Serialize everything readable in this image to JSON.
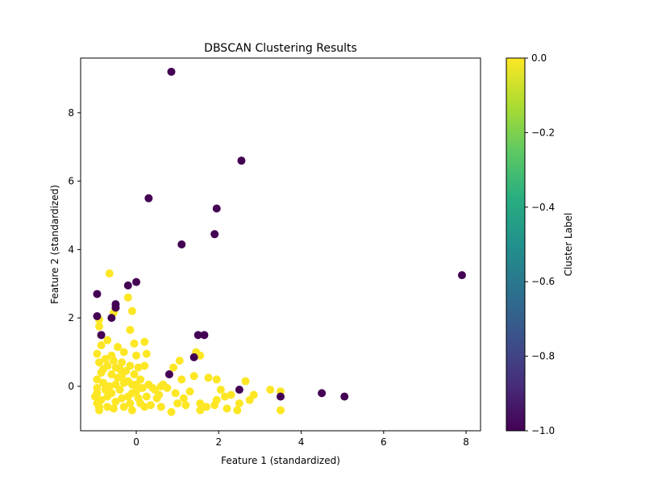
{
  "chart_data": {
    "type": "scatter",
    "title": "DBSCAN Clustering Results",
    "xlabel": "Feature 1 (standardized)",
    "ylabel": "Feature 2 (standardized)",
    "xlim": [
      -1.35,
      8.35
    ],
    "ylim": [
      -1.3,
      9.6
    ],
    "xticks": [
      0,
      2,
      4,
      6,
      8
    ],
    "yticks": [
      0,
      2,
      4,
      6,
      8
    ],
    "grid": false,
    "colorbar": {
      "label": "Cluster Label",
      "range": [
        -1.0,
        0.0
      ],
      "ticks": [
        "0.0",
        "−0.2",
        "−0.4",
        "−0.6",
        "−0.8",
        "−1.0"
      ],
      "tick_values": [
        0.0,
        -0.2,
        -0.4,
        -0.6,
        -0.8,
        -1.0
      ],
      "colormap": "viridis"
    },
    "colors": {
      "noise": "#440154",
      "cluster": "#fde725"
    },
    "series": [
      {
        "label_value": -1,
        "points": [
          [
            0.85,
            9.2
          ],
          [
            2.55,
            6.6
          ],
          [
            0.3,
            5.5
          ],
          [
            1.95,
            5.2
          ],
          [
            1.9,
            4.45
          ],
          [
            1.1,
            4.15
          ],
          [
            7.9,
            3.25
          ],
          [
            -0.2,
            2.95
          ],
          [
            0.0,
            3.05
          ],
          [
            -0.95,
            2.7
          ],
          [
            -0.5,
            2.4
          ],
          [
            -0.5,
            2.3
          ],
          [
            -0.6,
            2.0
          ],
          [
            -0.95,
            2.05
          ],
          [
            -0.85,
            1.5
          ],
          [
            1.5,
            1.5
          ],
          [
            1.65,
            1.5
          ],
          [
            1.4,
            0.85
          ],
          [
            0.8,
            0.35
          ],
          [
            2.5,
            -0.1
          ],
          [
            3.5,
            -0.3
          ],
          [
            4.5,
            -0.2
          ],
          [
            5.05,
            -0.3
          ]
        ]
      },
      {
        "label_value": 0,
        "points": [
          [
            -0.65,
            3.3
          ],
          [
            -0.2,
            2.6
          ],
          [
            -0.55,
            2.15
          ],
          [
            -0.1,
            2.2
          ],
          [
            -0.9,
            1.95
          ],
          [
            -0.9,
            1.75
          ],
          [
            -0.15,
            1.65
          ],
          [
            -0.7,
            1.35
          ],
          [
            0.2,
            1.3
          ],
          [
            -0.05,
            1.25
          ],
          [
            -0.85,
            1.2
          ],
          [
            -0.45,
            1.15
          ],
          [
            -0.3,
            1.0
          ],
          [
            0.25,
            0.95
          ],
          [
            1.45,
            1.0
          ],
          [
            1.55,
            0.9
          ],
          [
            1.05,
            0.75
          ],
          [
            -0.95,
            0.95
          ],
          [
            -0.6,
            0.9
          ],
          [
            0.0,
            0.9
          ],
          [
            0.9,
            0.55
          ],
          [
            0.2,
            0.6
          ],
          [
            1.75,
            0.25
          ],
          [
            1.95,
            0.2
          ],
          [
            2.65,
            0.15
          ],
          [
            1.1,
            0.2
          ],
          [
            1.4,
            0.3
          ],
          [
            3.25,
            -0.1
          ],
          [
            3.5,
            -0.15
          ],
          [
            2.85,
            -0.25
          ],
          [
            2.15,
            -0.3
          ],
          [
            2.3,
            -0.25
          ],
          [
            1.95,
            -0.4
          ],
          [
            2.75,
            -0.4
          ],
          [
            2.5,
            -0.5
          ],
          [
            2.2,
            -0.65
          ],
          [
            2.45,
            -0.7
          ],
          [
            1.9,
            -0.55
          ],
          [
            3.5,
            -0.7
          ],
          [
            1.55,
            -0.5
          ],
          [
            1.55,
            -0.7
          ],
          [
            1.2,
            -0.55
          ],
          [
            1.0,
            -0.5
          ],
          [
            0.85,
            -0.75
          ],
          [
            0.6,
            -0.6
          ],
          [
            0.5,
            -0.35
          ],
          [
            0.45,
            -0.1
          ],
          [
            0.65,
            0.05
          ],
          [
            0.3,
            0.05
          ],
          [
            0.1,
            0.2
          ],
          [
            -0.1,
            0.05
          ],
          [
            -0.35,
            0.3
          ],
          [
            -0.5,
            0.55
          ],
          [
            -0.7,
            0.6
          ],
          [
            -0.85,
            0.4
          ],
          [
            -0.95,
            0.2
          ],
          [
            -0.95,
            -0.05
          ],
          [
            -1.0,
            -0.3
          ],
          [
            -0.95,
            -0.5
          ],
          [
            -0.9,
            -0.7
          ],
          [
            -0.7,
            -0.6
          ],
          [
            -0.5,
            -0.45
          ],
          [
            -0.3,
            -0.6
          ],
          [
            -0.1,
            -0.7
          ],
          [
            0.1,
            -0.5
          ],
          [
            0.25,
            -0.3
          ],
          [
            -0.6,
            -0.2
          ],
          [
            -0.4,
            -0.1
          ],
          [
            -0.2,
            -0.3
          ],
          [
            0.0,
            -0.15
          ],
          [
            -0.8,
            0.1
          ],
          [
            -0.65,
            0.0
          ],
          [
            -0.45,
            0.25
          ],
          [
            -0.25,
            0.45
          ],
          [
            -0.05,
            0.35
          ],
          [
            0.15,
            -0.05
          ],
          [
            0.35,
            -0.55
          ],
          [
            0.55,
            -0.25
          ],
          [
            0.75,
            -0.05
          ],
          [
            0.95,
            -0.2
          ],
          [
            1.15,
            -0.35
          ],
          [
            1.3,
            -0.15
          ],
          [
            1.7,
            -0.6
          ],
          [
            2.05,
            -0.1
          ],
          [
            -0.9,
            0.7
          ],
          [
            -0.75,
            0.8
          ],
          [
            -0.55,
            0.75
          ],
          [
            -0.35,
            0.7
          ],
          [
            -0.15,
            0.6
          ],
          [
            0.05,
            0.55
          ],
          [
            -0.95,
            -0.2
          ],
          [
            -0.85,
            -0.4
          ],
          [
            -0.75,
            -0.1
          ],
          [
            -0.55,
            -0.65
          ],
          [
            -0.35,
            -0.35
          ],
          [
            -0.15,
            -0.5
          ],
          [
            0.05,
            -0.35
          ],
          [
            0.2,
            -0.6
          ],
          [
            0.4,
            -0.05
          ],
          [
            0.6,
            0.0
          ],
          [
            -0.8,
            0.5
          ],
          [
            -0.6,
            0.35
          ],
          [
            -0.4,
            0.5
          ],
          [
            -0.2,
            0.15
          ],
          [
            0.0,
            0.05
          ],
          [
            -0.9,
            -0.6
          ],
          [
            -0.7,
            -0.3
          ],
          [
            -0.5,
            0.05
          ],
          [
            -0.3,
            0.1
          ],
          [
            -0.1,
            -0.2
          ]
        ]
      }
    ]
  }
}
